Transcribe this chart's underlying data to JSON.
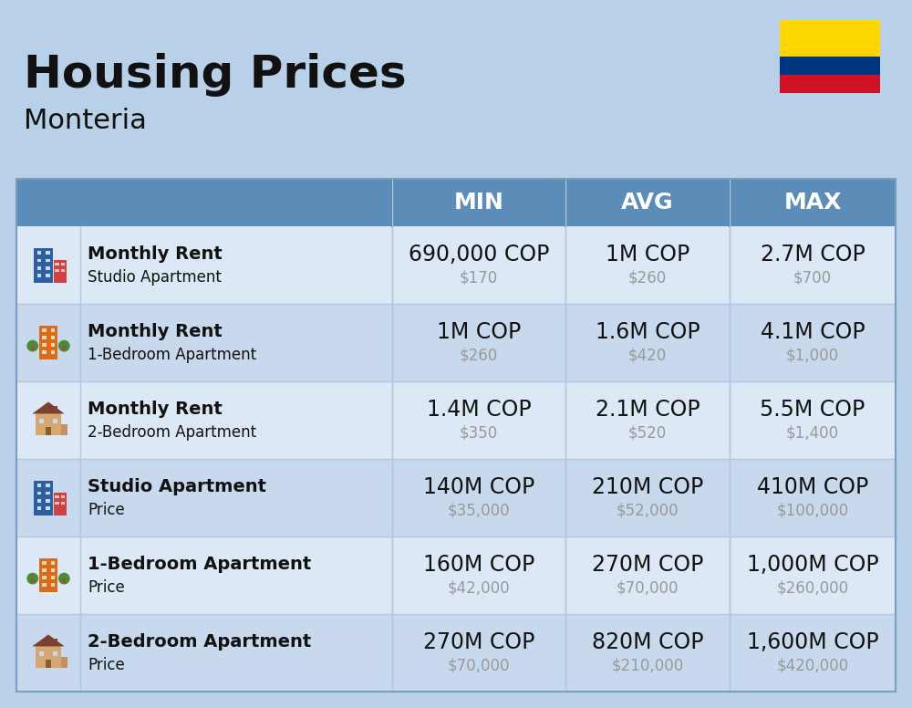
{
  "title": "Housing Prices",
  "subtitle": "Monteria",
  "background_color": "#b8d0e8",
  "header_bg_color": "#5b8db8",
  "header_text_color": "#ffffff",
  "row_bg_colors": [
    "#dce8f5",
    "#c8d8ed"
  ],
  "col_header_labels": [
    "MIN",
    "AVG",
    "MAX"
  ],
  "rows": [
    {
      "bold_label": "Monthly Rent",
      "sub_label": "Studio Apartment",
      "icon_type": "studio_blue",
      "min_cop": "690,000 COP",
      "min_usd": "$170",
      "avg_cop": "1M COP",
      "avg_usd": "$260",
      "max_cop": "2.7M COP",
      "max_usd": "$700"
    },
    {
      "bold_label": "Monthly Rent",
      "sub_label": "1-Bedroom Apartment",
      "icon_type": "one_bed_orange",
      "min_cop": "1M COP",
      "min_usd": "$260",
      "avg_cop": "1.6M COP",
      "avg_usd": "$420",
      "max_cop": "4.1M COP",
      "max_usd": "$1,000"
    },
    {
      "bold_label": "Monthly Rent",
      "sub_label": "2-Bedroom Apartment",
      "icon_type": "two_bed_tan",
      "min_cop": "1.4M COP",
      "min_usd": "$350",
      "avg_cop": "2.1M COP",
      "avg_usd": "$520",
      "max_cop": "5.5M COP",
      "max_usd": "$1,400"
    },
    {
      "bold_label": "Studio Apartment",
      "sub_label": "Price",
      "icon_type": "studio_blue",
      "min_cop": "140M COP",
      "min_usd": "$35,000",
      "avg_cop": "210M COP",
      "avg_usd": "$52,000",
      "max_cop": "410M COP",
      "max_usd": "$100,000"
    },
    {
      "bold_label": "1-Bedroom Apartment",
      "sub_label": "Price",
      "icon_type": "one_bed_orange",
      "min_cop": "160M COP",
      "min_usd": "$42,000",
      "avg_cop": "270M COP",
      "avg_usd": "$70,000",
      "max_cop": "1,000M COP",
      "max_usd": "$260,000"
    },
    {
      "bold_label": "2-Bedroom Apartment",
      "sub_label": "Price",
      "icon_type": "two_bed_tan",
      "min_cop": "270M COP",
      "min_usd": "$70,000",
      "avg_cop": "820M COP",
      "avg_usd": "$210,000",
      "max_cop": "1,600M COP",
      "max_usd": "$420,000"
    }
  ],
  "cop_fontsize": 17,
  "usd_fontsize": 12,
  "label_bold_fontsize": 14,
  "label_sub_fontsize": 12,
  "title_fontsize": 36,
  "subtitle_fontsize": 22,
  "header_fontsize": 18,
  "usd_color": "#999999",
  "text_color": "#111111",
  "flag_yellow": "#FFD700",
  "flag_blue": "#003580",
  "flag_red": "#CE1126"
}
